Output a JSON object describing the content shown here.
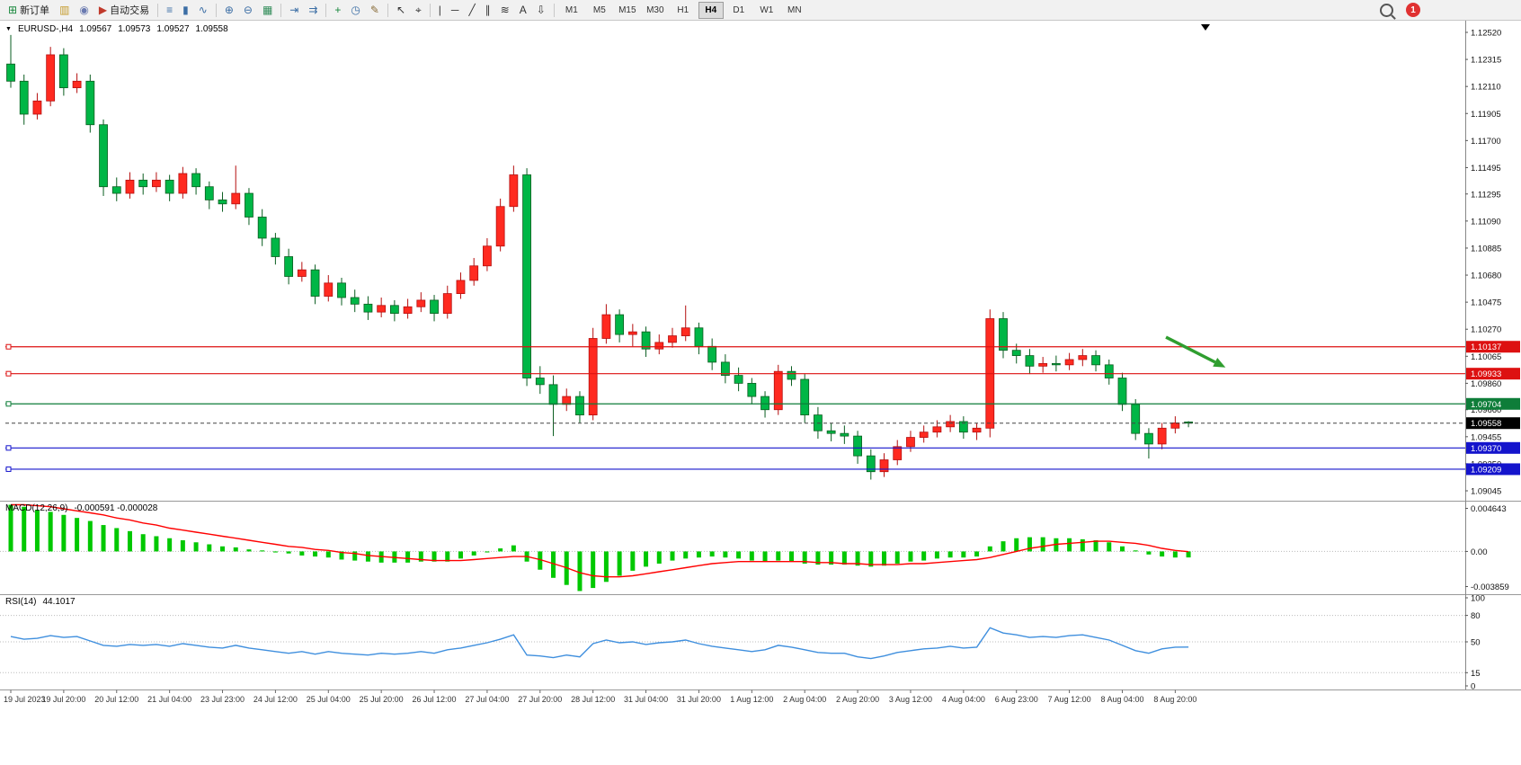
{
  "toolbar": {
    "groups": [
      {
        "items": [
          {
            "name": "new-order-button",
            "glyph": "⊞",
            "glyph_color": "#18883c",
            "label": "新订单"
          },
          {
            "name": "market-watch-button",
            "glyph": "▥",
            "glyph_color": "#c59a2a"
          },
          {
            "name": "data-window-button",
            "glyph": "◉",
            "glyph_color": "#6a7ab0"
          },
          {
            "name": "autotrade-button",
            "glyph": "▶",
            "glyph_color": "#c0392b",
            "label": "自动交易"
          }
        ]
      },
      {
        "items": [
          {
            "name": "bar-chart-type-button",
            "glyph": "≡",
            "glyph_color": "#3b6ea5"
          },
          {
            "name": "candlestick-type-button",
            "glyph": "▮",
            "glyph_color": "#3b6ea5"
          },
          {
            "name": "line-chart-type-button",
            "glyph": "∿",
            "glyph_color": "#3b6ea5"
          }
        ]
      },
      {
        "items": [
          {
            "name": "zoom-in-button",
            "glyph": "⊕",
            "glyph_color": "#3b6ea5"
          },
          {
            "name": "zoom-out-button",
            "glyph": "⊖",
            "glyph_color": "#3b6ea5"
          },
          {
            "name": "tile-windows-button",
            "glyph": "▦",
            "glyph_color": "#2e8b57"
          }
        ]
      },
      {
        "items": [
          {
            "name": "auto-scroll-button",
            "glyph": "⇥",
            "glyph_color": "#3b6ea5"
          },
          {
            "name": "chart-shift-button",
            "glyph": "⇉",
            "glyph_color": "#3b6ea5"
          }
        ]
      },
      {
        "items": [
          {
            "name": "indicators-button",
            "glyph": "+",
            "glyph_color": "#18883c"
          },
          {
            "name": "periods-button",
            "glyph": "◷",
            "glyph_color": "#3b6ea5"
          },
          {
            "name": "templates-button",
            "glyph": "✎",
            "glyph_color": "#8a6d3b"
          }
        ]
      },
      {
        "items": [
          {
            "name": "cursor-button",
            "glyph": "↖",
            "glyph_color": "#333333"
          },
          {
            "name": "crosshair-button",
            "glyph": "⌖",
            "glyph_color": "#333333"
          }
        ]
      },
      {
        "items": [
          {
            "name": "vertical-line-button",
            "glyph": "|",
            "glyph_color": "#333333"
          },
          {
            "name": "horizontal-line-button",
            "glyph": "─",
            "glyph_color": "#333333"
          },
          {
            "name": "trendline-button",
            "glyph": "╱",
            "glyph_color": "#333333"
          },
          {
            "name": "channel-button",
            "glyph": "∥",
            "glyph_color": "#333333"
          },
          {
            "name": "fibonacci-button",
            "glyph": "≋",
            "glyph_color": "#333333"
          },
          {
            "name": "text-button",
            "glyph": "A",
            "glyph_color": "#333333"
          },
          {
            "name": "arrows-button",
            "glyph": "⇩",
            "glyph_color": "#333333"
          }
        ]
      }
    ],
    "timeframes": {
      "options": [
        "M1",
        "M5",
        "M15",
        "M30",
        "H1",
        "H4",
        "D1",
        "W1",
        "MN"
      ],
      "active": "H4"
    },
    "right": {
      "notification_count": "1"
    }
  },
  "chart_header": {
    "collapse_marker": "▼",
    "symbol_period": "EURUSD-,H4",
    "open": "1.09567",
    "high": "1.09573",
    "low": "1.09527",
    "close": "1.09558"
  },
  "chart_data": {
    "type": "candlestick",
    "symbol": "EURUSD-",
    "timeframe": "H4",
    "bull_color": "#ff2a20",
    "bull_edge": "#b50f0f",
    "bear_color": "#00b646",
    "bear_edge": "#0a5d20",
    "price_axis_labels": [
      "1.12520",
      "1.12315",
      "1.12110",
      "1.11905",
      "1.11700",
      "1.11495",
      "1.11295",
      "1.11090",
      "1.10885",
      "1.10680",
      "1.10475",
      "1.10270",
      "1.10065",
      "1.09860",
      "1.09660",
      "1.09455",
      "1.09250",
      "1.09045"
    ],
    "price_axis_anchor": {
      "top_price": 1.1252,
      "bottom_price": 1.09045
    },
    "x_labels": [
      "19 Jul 2023",
      "19 Jul 20:00",
      "20 Jul 12:00",
      "21 Jul 04:00",
      "23 Jul 23:00",
      "24 Jul 12:00",
      "25 Jul 04:00",
      "25 Jul 20:00",
      "26 Jul 12:00",
      "27 Jul 04:00",
      "27 Jul 20:00",
      "28 Jul 12:00",
      "31 Jul 04:00",
      "31 Jul 20:00",
      "1 Aug 12:00",
      "2 Aug 04:00",
      "2 Aug 20:00",
      "3 Aug 12:00",
      "4 Aug 04:00",
      "6 Aug 23:00",
      "7 Aug 12:00",
      "8 Aug 04:00",
      "8 Aug 20:00"
    ],
    "x_label_every_n_candles": 4,
    "candles": [
      [
        1.1228,
        1.125,
        1.121,
        1.1215
      ],
      [
        1.1215,
        1.122,
        1.1182,
        1.119
      ],
      [
        1.119,
        1.1206,
        1.1186,
        1.12
      ],
      [
        1.12,
        1.1241,
        1.1196,
        1.1235
      ],
      [
        1.1235,
        1.124,
        1.1204,
        1.121
      ],
      [
        1.121,
        1.1221,
        1.1206,
        1.1215
      ],
      [
        1.1215,
        1.122,
        1.1176,
        1.1182
      ],
      [
        1.1182,
        1.1186,
        1.1128,
        1.1135
      ],
      [
        1.1135,
        1.1142,
        1.1124,
        1.113
      ],
      [
        1.113,
        1.1146,
        1.1126,
        1.114
      ],
      [
        1.114,
        1.1145,
        1.1129,
        1.1135
      ],
      [
        1.1135,
        1.1146,
        1.1131,
        1.114
      ],
      [
        1.114,
        1.1144,
        1.1124,
        1.113
      ],
      [
        1.113,
        1.115,
        1.1126,
        1.1145
      ],
      [
        1.1145,
        1.1149,
        1.1129,
        1.1135
      ],
      [
        1.1135,
        1.1139,
        1.1118,
        1.1125
      ],
      [
        1.1125,
        1.1131,
        1.1116,
        1.1122
      ],
      [
        1.1122,
        1.1151,
        1.1118,
        1.113
      ],
      [
        1.113,
        1.1134,
        1.1106,
        1.1112
      ],
      [
        1.1112,
        1.1118,
        1.109,
        1.1096
      ],
      [
        1.1096,
        1.11,
        1.1076,
        1.1082
      ],
      [
        1.1082,
        1.1088,
        1.1061,
        1.1067
      ],
      [
        1.1067,
        1.1078,
        1.1063,
        1.1072
      ],
      [
        1.1072,
        1.1076,
        1.1046,
        1.1052
      ],
      [
        1.1052,
        1.1068,
        1.1048,
        1.1062
      ],
      [
        1.1062,
        1.1066,
        1.1045,
        1.1051
      ],
      [
        1.1051,
        1.1057,
        1.104,
        1.1046
      ],
      [
        1.1046,
        1.1052,
        1.1034,
        1.104
      ],
      [
        1.104,
        1.1051,
        1.1036,
        1.1045
      ],
      [
        1.1045,
        1.1049,
        1.1033,
        1.1039
      ],
      [
        1.1039,
        1.105,
        1.1035,
        1.1044
      ],
      [
        1.1044,
        1.1055,
        1.104,
        1.1049
      ],
      [
        1.1049,
        1.1053,
        1.1033,
        1.1039
      ],
      [
        1.1039,
        1.106,
        1.1035,
        1.1054
      ],
      [
        1.1054,
        1.107,
        1.105,
        1.1064
      ],
      [
        1.1064,
        1.1081,
        1.106,
        1.1075
      ],
      [
        1.1075,
        1.1096,
        1.1071,
        1.109
      ],
      [
        1.109,
        1.1126,
        1.1086,
        1.112
      ],
      [
        1.112,
        1.1151,
        1.1116,
        1.1144
      ],
      [
        1.1144,
        1.1149,
        1.0984,
        1.099
      ],
      [
        1.099,
        1.0999,
        1.0978,
        1.0985
      ],
      [
        1.0985,
        1.0992,
        1.0946,
        1.097
      ],
      [
        1.097,
        1.0982,
        1.0965,
        1.0976
      ],
      [
        1.0976,
        1.098,
        1.0956,
        1.0962
      ],
      [
        1.0962,
        1.1028,
        1.0958,
        1.102
      ],
      [
        1.102,
        1.1046,
        1.1016,
        1.1038
      ],
      [
        1.1038,
        1.1042,
        1.1017,
        1.1023
      ],
      [
        1.1023,
        1.1031,
        1.1014,
        1.1025
      ],
      [
        1.1025,
        1.1029,
        1.1006,
        1.1012
      ],
      [
        1.1012,
        1.1023,
        1.1008,
        1.1017
      ],
      [
        1.1017,
        1.1028,
        1.1013,
        1.1022
      ],
      [
        1.1022,
        1.1045,
        1.1018,
        1.1028
      ],
      [
        1.1028,
        1.1032,
        1.1008,
        1.1014
      ],
      [
        1.1014,
        1.102,
        1.0996,
        1.1002
      ],
      [
        1.1002,
        1.1008,
        1.0986,
        1.0992
      ],
      [
        1.0992,
        1.0998,
        1.098,
        1.0986
      ],
      [
        1.0986,
        1.099,
        1.097,
        1.0976
      ],
      [
        1.0976,
        1.098,
        1.096,
        1.0966
      ],
      [
        1.0966,
        1.1,
        1.0962,
        1.0995
      ],
      [
        1.0995,
        1.0999,
        1.0984,
        1.0989
      ],
      [
        1.0989,
        1.0993,
        1.0956,
        1.0962
      ],
      [
        1.0962,
        1.0968,
        1.0944,
        1.095
      ],
      [
        1.095,
        1.0956,
        1.0942,
        1.0948
      ],
      [
        1.0948,
        1.0954,
        1.094,
        1.0946
      ],
      [
        1.0946,
        1.095,
        1.0925,
        1.0931
      ],
      [
        1.0931,
        1.0936,
        1.0913,
        1.0919
      ],
      [
        1.0919,
        1.0933,
        1.0915,
        1.0928
      ],
      [
        1.0928,
        1.0943,
        1.0924,
        1.0938
      ],
      [
        1.0938,
        1.095,
        1.0934,
        1.0945
      ],
      [
        1.0945,
        1.0954,
        1.0941,
        1.0949
      ],
      [
        1.0949,
        1.0958,
        1.0945,
        1.0953
      ],
      [
        1.0953,
        1.0962,
        1.0949,
        1.0957
      ],
      [
        1.0957,
        1.0961,
        1.0944,
        1.0949
      ],
      [
        1.0949,
        1.0956,
        1.0943,
        1.0952
      ],
      [
        1.0952,
        1.1042,
        1.0945,
        1.1035
      ],
      [
        1.1035,
        1.104,
        1.1005,
        1.1011
      ],
      [
        1.1011,
        1.1016,
        1.1001,
        1.1007
      ],
      [
        1.1007,
        1.1012,
        1.0993,
        1.0999
      ],
      [
        1.0999,
        1.1006,
        1.0994,
        1.1001
      ],
      [
        1.1001,
        1.1007,
        1.0995,
        1.1
      ],
      [
        1.1,
        1.1009,
        1.0996,
        1.1004
      ],
      [
        1.1004,
        1.1012,
        1.0999,
        1.1007
      ],
      [
        1.1007,
        1.1011,
        1.0995,
        1.1
      ],
      [
        1.1,
        1.1004,
        1.0985,
        1.099
      ],
      [
        1.099,
        1.0994,
        1.0965,
        1.097
      ],
      [
        1.097,
        1.0974,
        1.0943,
        1.0948
      ],
      [
        1.0948,
        1.0952,
        1.0929,
        1.094
      ],
      [
        1.094,
        1.0956,
        1.0936,
        1.0952
      ],
      [
        1.0952,
        1.0961,
        1.0948,
        1.0956
      ],
      [
        1.09567,
        1.09573,
        1.09527,
        1.09558
      ]
    ],
    "hlines": [
      {
        "price": 1.10137,
        "label": "1.10137",
        "color": "#dd1111"
      },
      {
        "price": 1.09933,
        "label": "1.09933",
        "color": "#dd1111"
      },
      {
        "price": 1.09704,
        "label": "1.09704",
        "color": "#0e7d39"
      },
      {
        "price": 1.0937,
        "label": "1.09370",
        "color": "#1414cc"
      },
      {
        "price": 1.09209,
        "label": "1.09209",
        "color": "#1414cc"
      }
    ],
    "current_price": {
      "price": 1.09558,
      "label": "1.09558",
      "line_color": "#444444",
      "badge_color": "#000000"
    },
    "annotations": [
      {
        "type": "arrow",
        "direction": "down-right",
        "from": {
          "index": 87.3,
          "price": 1.1021
        },
        "to": {
          "index": 91.8,
          "price": 1.0998
        },
        "color": "#2f9e2f"
      }
    ],
    "indicators": [
      {
        "name": "MACD",
        "label": "MACD(12,26,9)",
        "values_label": "-0.000591 -0.000028",
        "histogram_color": "#00c800",
        "signal_color": "#ff0000",
        "axis_labels": [
          "0.004643",
          "0.00",
          "-0.003859"
        ],
        "max": 0.004643,
        "min": -0.003859,
        "histogram": [
          0.0046,
          0.0044,
          0.0041,
          0.0039,
          0.0036,
          0.0033,
          0.003,
          0.0026,
          0.0023,
          0.002,
          0.0017,
          0.0015,
          0.0013,
          0.0011,
          0.0009,
          0.0007,
          0.0005,
          0.0004,
          0.0002,
          0.0001,
          -0.0001,
          -0.0002,
          -0.0004,
          -0.0005,
          -0.0006,
          -0.0008,
          -0.0009,
          -0.001,
          -0.0011,
          -0.0011,
          -0.0011,
          -0.001,
          -0.001,
          -0.001,
          -0.0007,
          -0.0004,
          -0.0001,
          0.0003,
          0.0006,
          -0.001,
          -0.0018,
          -0.0026,
          -0.0033,
          -0.0039,
          -0.0036,
          -0.003,
          -0.0024,
          -0.0019,
          -0.0015,
          -0.0012,
          -0.0009,
          -0.0007,
          -0.0006,
          -0.0005,
          -0.0006,
          -0.0007,
          -0.0009,
          -0.001,
          -0.0009,
          -0.001,
          -0.0012,
          -0.0013,
          -0.0013,
          -0.0013,
          -0.0014,
          -0.0015,
          -0.0014,
          -0.0012,
          -0.001,
          -0.0009,
          -0.0007,
          -0.0006,
          -0.0006,
          -0.0005,
          0.0005,
          0.001,
          0.0013,
          0.0014,
          0.0014,
          0.0013,
          0.0013,
          0.0012,
          0.0011,
          0.0009,
          0.0005,
          0.0001,
          -0.0003,
          -0.0005,
          -0.0006,
          -0.000591
        ],
        "signal": [
          0.0046,
          0.0046,
          0.0045,
          0.0044,
          0.0042,
          0.004,
          0.0038,
          0.0036,
          0.0033,
          0.0031,
          0.0028,
          0.0026,
          0.0023,
          0.0021,
          0.0019,
          0.0017,
          0.0015,
          0.0013,
          0.0011,
          0.0009,
          0.0007,
          0.0005,
          0.0004,
          0.0002,
          0.0001,
          -0.0001,
          -0.0002,
          -0.0004,
          -0.0005,
          -0.0006,
          -0.0007,
          -0.0008,
          -0.0009,
          -0.0009,
          -0.0009,
          -0.0008,
          -0.0007,
          -0.0006,
          -0.0005,
          -0.0005,
          -0.0008,
          -0.0012,
          -0.0016,
          -0.0021,
          -0.0024,
          -0.0025,
          -0.0025,
          -0.0024,
          -0.0022,
          -0.002,
          -0.0018,
          -0.0016,
          -0.0014,
          -0.0012,
          -0.0011,
          -0.001,
          -0.001,
          -0.001,
          -0.001,
          -0.001,
          -0.001,
          -0.0011,
          -0.0011,
          -0.0012,
          -0.0012,
          -0.0013,
          -0.0013,
          -0.0013,
          -0.0012,
          -0.0012,
          -0.0011,
          -0.001,
          -0.0009,
          -0.0008,
          -0.0006,
          -0.0003,
          0.0,
          0.0003,
          0.0005,
          0.0007,
          0.0008,
          0.0009,
          0.001,
          0.001,
          0.0009,
          0.0008,
          0.0006,
          0.0003,
          0.0001,
          -2.8e-05
        ]
      },
      {
        "name": "RSI",
        "label": "RSI(14)",
        "value_label": "44.1017",
        "line_color": "#3f8fde",
        "axis_labels": [
          "100",
          "80",
          "50",
          "15",
          "0"
        ],
        "axis_values": [
          100,
          80,
          50,
          15,
          0
        ],
        "levels": [
          80,
          50,
          15
        ],
        "range": [
          0,
          100
        ],
        "values": [
          56,
          53,
          54,
          57,
          55,
          56,
          51,
          46,
          45,
          47,
          46,
          47,
          45,
          48,
          46,
          44,
          43,
          46,
          43,
          41,
          39,
          37,
          39,
          36,
          39,
          37,
          36,
          35,
          37,
          36,
          37,
          39,
          37,
          41,
          43,
          46,
          49,
          53,
          58,
          35,
          34,
          32,
          35,
          33,
          48,
          52,
          49,
          50,
          47,
          49,
          50,
          52,
          48,
          45,
          43,
          41,
          39,
          41,
          46,
          44,
          41,
          38,
          37,
          37,
          33,
          31,
          34,
          38,
          40,
          42,
          43,
          45,
          43,
          44,
          66,
          60,
          58,
          55,
          56,
          55,
          57,
          58,
          55,
          52,
          46,
          40,
          37,
          42,
          44,
          44.1
        ]
      }
    ]
  }
}
